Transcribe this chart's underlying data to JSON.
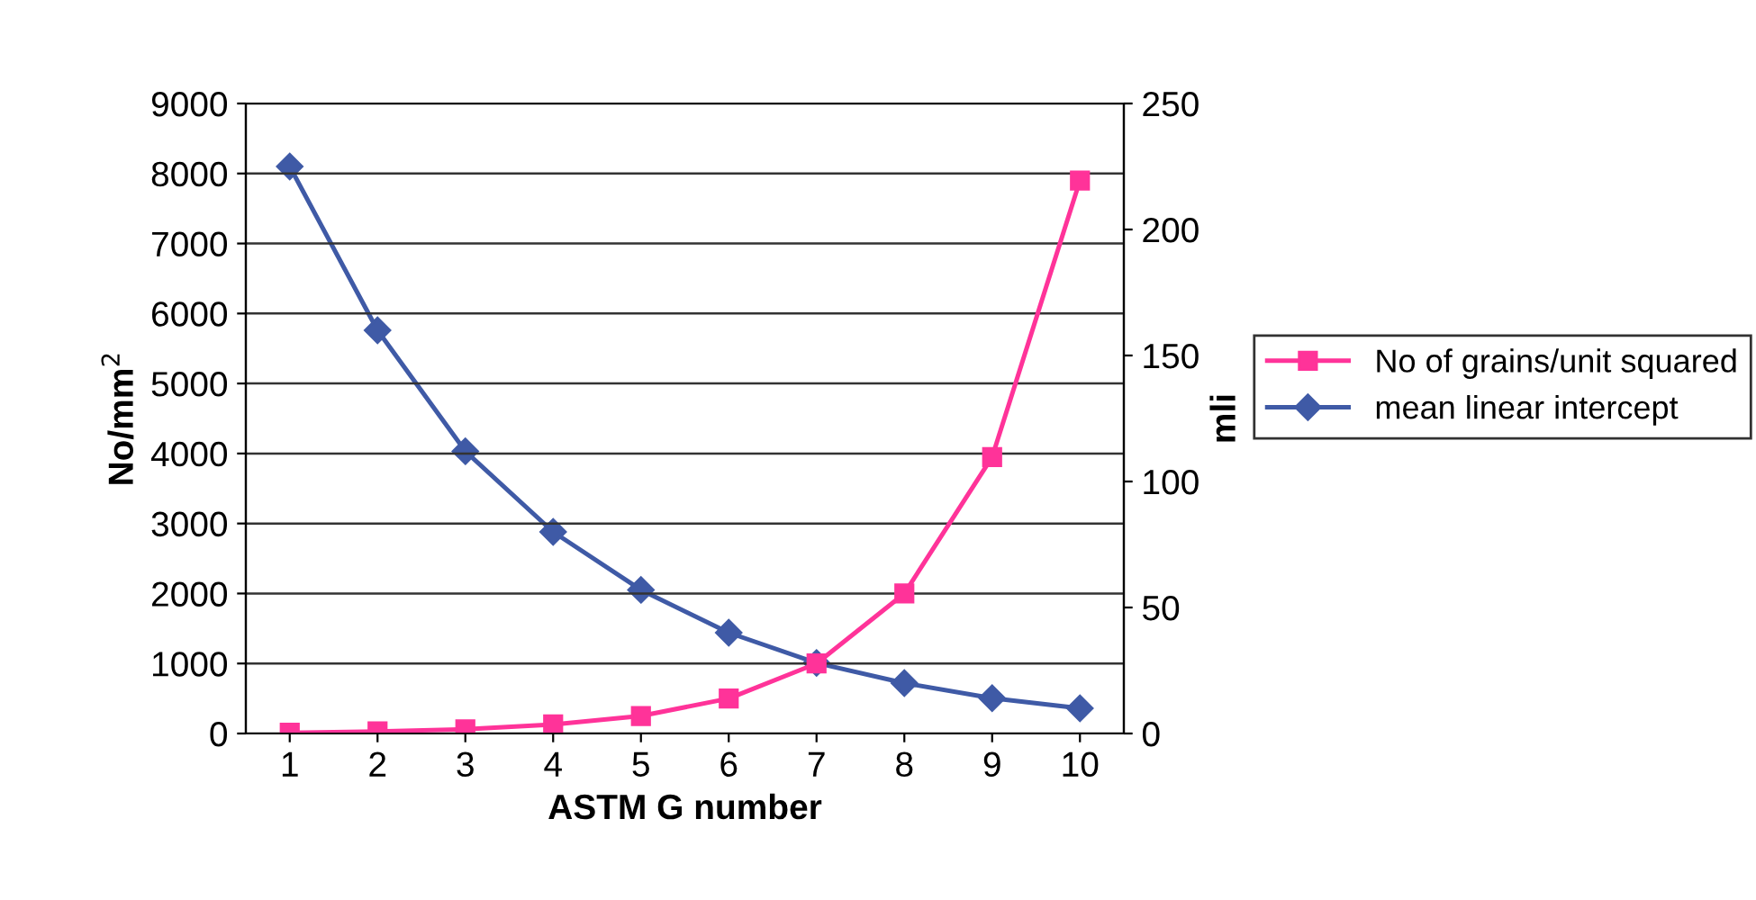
{
  "chart_data": {
    "type": "line",
    "xlabel": "ASTM G number",
    "ylabel": "No/mm$^{2}$",
    "y2label": "mli",
    "categories": [
      "1",
      "2",
      "3",
      "4",
      "5",
      "6",
      "7",
      "8",
      "9",
      "10"
    ],
    "series": [
      {
        "name": "No of grains/unit squared",
        "color": "#ff3399",
        "marker": "square",
        "values": [
          10,
          30,
          60,
          130,
          250,
          500,
          1000,
          2000,
          3950,
          7900
        ]
      },
      {
        "name": "mean linear intercept",
        "color": "#3f5aa6",
        "marker": "diamond",
        "axis": "y2",
        "values": [
          225,
          160,
          112,
          80,
          57,
          40,
          28,
          20,
          14,
          10
        ]
      }
    ],
    "ylim": [
      0,
      9000
    ],
    "yticks": [
      0,
      1000,
      2000,
      3000,
      4000,
      5000,
      6000,
      7000,
      8000,
      9000
    ],
    "y2lim": [
      0,
      250
    ],
    "y2ticks": [
      0,
      50,
      100,
      150,
      200,
      250
    ],
    "grid": "y",
    "legend": "right",
    "line_style": "solid"
  }
}
